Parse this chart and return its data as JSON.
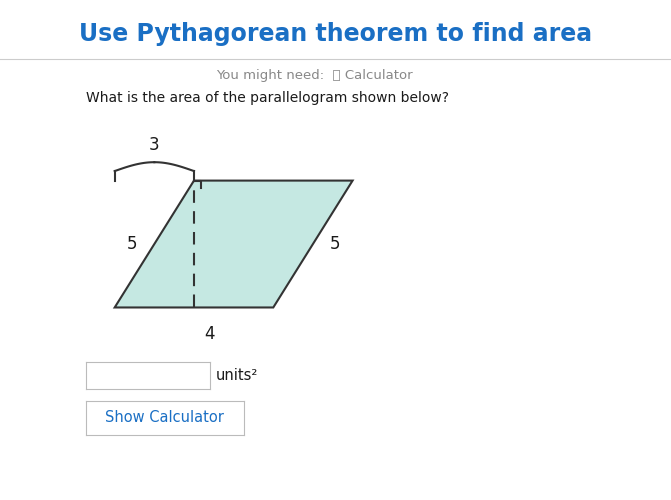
{
  "title": "Use Pythagorean theorem to find area",
  "title_color": "#1a6fc4",
  "subtitle_left": "You might need:",
  "subtitle_right": "Calculator",
  "question": "What is the area of the parallelogram shown below?",
  "parallelogram_fill": "#c5e8e2",
  "parallelogram_stroke": "#333333",
  "label_3": "3",
  "label_5_left": "5",
  "label_5_right": "5",
  "label_4": "4",
  "units_label": "units²",
  "button_text": "Show Calculator",
  "button_color": "#1a6fc4",
  "background_color": "#ffffff",
  "separator_color": "#cccccc",
  "title_fontsize": 17,
  "question_fontsize": 10,
  "label_fontsize": 12
}
